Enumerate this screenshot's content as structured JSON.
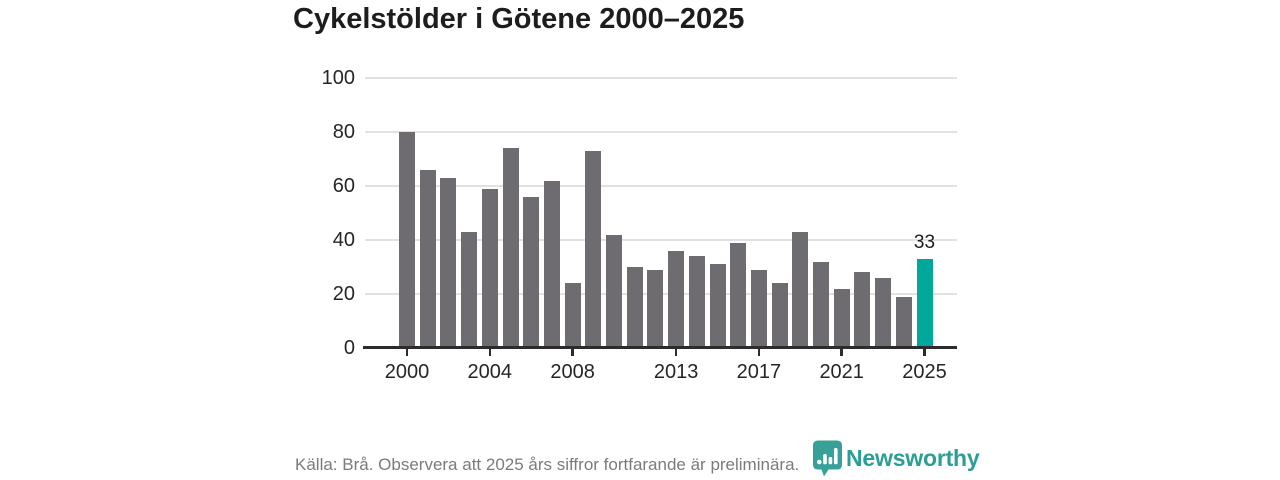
{
  "page": {
    "background": "#ffffff"
  },
  "header": {
    "title": "Cykelstölder i Götene 2000–2025"
  },
  "chart_data": {
    "type": "bar",
    "title": "Cykelstölder i Götene 2000–2025",
    "categories": [
      "2000",
      "2001",
      "2002",
      "2003",
      "2004",
      "2005",
      "2006",
      "2007",
      "2008",
      "2009",
      "2010",
      "2011",
      "2012",
      "2013",
      "2014",
      "2015",
      "2016",
      "2017",
      "2018",
      "2019",
      "2020",
      "2021",
      "2022",
      "2023",
      "2024",
      "2025"
    ],
    "values": [
      80,
      66,
      63,
      43,
      59,
      74,
      56,
      62,
      24,
      73,
      42,
      30,
      29,
      36,
      34,
      31,
      39,
      29,
      24,
      43,
      32,
      22,
      28,
      26,
      19,
      33
    ],
    "xlabel": "",
    "ylabel": "",
    "ylim": [
      0,
      100
    ],
    "y_ticks": [
      0,
      20,
      40,
      60,
      80,
      100
    ],
    "x_tick_labels": [
      "2000",
      "2004",
      "2008",
      "2013",
      "2017",
      "2021",
      "2025"
    ],
    "grid": "horizontal",
    "legend_position": "none",
    "bar_color": "#6e6c71",
    "highlight_category": "2025",
    "highlight_color": "#00a79b",
    "value_labels": [
      {
        "category": "2025",
        "label": "33"
      }
    ]
  },
  "footer": {
    "source_text": "Källa: Brå. Observera att 2025 års siffror fortfarande är preliminära.",
    "brand_name": "Newsworthy",
    "brand_color": "#2b9e96",
    "logo_icon": "newsworthy-pin-barchart-icon"
  }
}
